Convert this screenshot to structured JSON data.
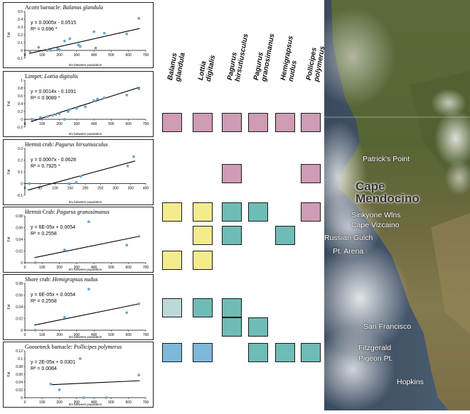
{
  "colors": {
    "pink": "#cf9bb5",
    "yellow": "#f4ec8c",
    "teal": "#6fbcb6",
    "paleblue": "#bcd9d8",
    "blue": "#7fb8d9",
    "regression_line": "#000000",
    "point": "#6fa4cf"
  },
  "panels": [
    {
      "common": "Acorn barnacle:",
      "species": "Balanus glandula",
      "eq": "y = 0.0005x - 0.0515",
      "r2": "R² = 0.696 *",
      "ylabel": "Fst",
      "xlabel": "km between population",
      "yticks": [
        "0.5",
        "0.4",
        "0.3",
        "0.2",
        "0.1",
        "0",
        "-0.1"
      ],
      "xticks": [
        "0",
        "100",
        "200",
        "300",
        "400",
        "500",
        "600",
        "700"
      ],
      "chart_data": {
        "type": "scatter",
        "xlim": [
          0,
          700
        ],
        "ylim": [
          -0.1,
          0.5
        ],
        "x": [
          30,
          80,
          130,
          150,
          190,
          200,
          230,
          260,
          310,
          320,
          400,
          410,
          460,
          590,
          660
        ],
        "y": [
          -0.01,
          0.04,
          0.0,
          0.0,
          0.02,
          0.01,
          0.12,
          0.15,
          0.07,
          0.05,
          0.24,
          0.03,
          0.22,
          0.21,
          0.41
        ],
        "fit": {
          "slope": 0.0005,
          "intercept": -0.0515
        }
      }
    },
    {
      "common": "Limpet:",
      "species": "Lottia digitalis",
      "eq": "y = 0.0014x - 0.1091",
      "r2": "R² = 0.9089 *",
      "ylabel": "Fst",
      "xlabel": "km between population",
      "yticks": [
        "1",
        "0.8",
        "0.6",
        "0.4",
        "0.2",
        "0",
        "-0.2"
      ],
      "xticks": [
        "0",
        "100",
        "200",
        "300",
        "400",
        "500",
        "600",
        "700"
      ],
      "chart_data": {
        "type": "scatter",
        "xlim": [
          0,
          700
        ],
        "ylim": [
          -0.2,
          1
        ],
        "x": [
          40,
          90,
          130,
          160,
          180,
          200,
          230,
          250,
          260,
          300,
          350,
          400,
          420,
          460,
          590,
          660
        ],
        "y": [
          0.0,
          0.05,
          0.07,
          0.1,
          0.12,
          0.14,
          0.0,
          0.2,
          0.25,
          0.28,
          0.32,
          0.48,
          0.52,
          0.55,
          0.62,
          0.78
        ],
        "fit": {
          "slope": 0.0014,
          "intercept": -0.1091
        }
      }
    },
    {
      "common": "Hermit crab:",
      "species": "Pagurus hirsutiusculus",
      "eq": "y = 0.0007x - 0.0628",
      "r2": "R² = 0.7925 *",
      "ylabel": "Fst",
      "xlabel": "km between population",
      "yticks": [
        "0.3",
        "0.2",
        "0.1",
        "0",
        "-0.1"
      ],
      "xticks": [
        "0",
        "50",
        "100",
        "150",
        "200",
        "250",
        "300",
        "350",
        "400"
      ],
      "chart_data": {
        "type": "scatter",
        "xlim": [
          0,
          400
        ],
        "ylim": [
          -0.1,
          0.3
        ],
        "x": [
          15,
          145,
          170,
          185,
          340,
          360
        ],
        "y": [
          0.0,
          0.0,
          0.01,
          0.06,
          0.15,
          0.23
        ],
        "fit": {
          "slope": 0.0007,
          "intercept": -0.0628
        }
      }
    },
    {
      "common": "Hermit Crab:",
      "species": "Pagurus granosimanus",
      "eq": "y = 6E-05x + 0.0054",
      "r2": "R² = 0.2558",
      "ylabel": "Fst",
      "xlabel": "km between population",
      "yticks": [
        "0.08",
        "0.06",
        "0.04",
        "0.02",
        "0"
      ],
      "xticks": [
        "0",
        "100",
        "200",
        "300",
        "400",
        "500",
        "600",
        "700"
      ],
      "chart_data": {
        "type": "scatter",
        "xlim": [
          0,
          700
        ],
        "ylim": [
          0,
          0.08
        ],
        "x": [
          60,
          230,
          370,
          590,
          660
        ],
        "y": [
          0.0,
          0.022,
          0.07,
          0.03,
          0.045
        ],
        "fit": {
          "slope": 6e-05,
          "intercept": 0.0054
        }
      }
    },
    {
      "common": "Shore crab:",
      "species": "Hemigrapsus nudus",
      "eq": "y = 6E-05x + 0.0054",
      "r2": "R² = 0.2558",
      "ylabel": "Fst",
      "xlabel": "km between population",
      "yticks": [
        "0.08",
        "0.06",
        "0.04",
        "0.02",
        "0"
      ],
      "xticks": [
        "0",
        "100",
        "200",
        "300",
        "400",
        "500",
        "600",
        "700"
      ],
      "chart_data": {
        "type": "scatter",
        "xlim": [
          0,
          700
        ],
        "ylim": [
          0,
          0.08
        ],
        "x": [
          60,
          230,
          370,
          590,
          660
        ],
        "y": [
          0.0,
          0.022,
          0.07,
          0.03,
          0.045
        ],
        "fit": {
          "slope": 6e-05,
          "intercept": 0.0054
        }
      }
    },
    {
      "common": "Gooseneck barnacle:",
      "species": "Pollicipes polymerus",
      "eq": "y = 2E-05x + 0.0301",
      "r2": "R² = 0.0084",
      "ylabel": "Fst",
      "xlabel": "km between population",
      "yticks": [
        "0.12",
        "0.1",
        "0.08",
        "0.06",
        "0.04",
        "0.02",
        "0"
      ],
      "xticks": [
        "0",
        "100",
        "200",
        "300",
        "400",
        "500",
        "600",
        "700"
      ],
      "chart_data": {
        "type": "scatter",
        "xlim": [
          0,
          700
        ],
        "ylim": [
          0,
          0.12
        ],
        "x": [
          150,
          200,
          320,
          340,
          470,
          660
        ],
        "y": [
          0.035,
          0.02,
          0.1,
          0.0,
          0.0,
          0.058
        ],
        "fit": {
          "slope": 2e-05,
          "intercept": 0.0301
        }
      }
    }
  ],
  "grid": {
    "columns": [
      "Balanus\nglandula",
      "Lottia\ndigitalis",
      "Pagurus\nhirsutiusculus",
      "Pagurus\ngranosimanus",
      "Hemigrapsus\nnudus",
      "Pollicipes\npolymerus"
    ],
    "rows": [
      [
        "pink",
        "pink",
        "pink",
        "pink",
        "pink",
        "pink"
      ],
      [
        null,
        null,
        null,
        null,
        null,
        null
      ],
      [
        null,
        null,
        "pink",
        null,
        null,
        "pink"
      ],
      [
        "yellow",
        "yellow",
        "teal",
        "teal",
        null,
        "pink"
      ],
      [
        null,
        "yellow",
        "teal",
        null,
        "teal",
        null
      ],
      [
        "yellow",
        "yellow",
        null,
        null,
        null,
        null
      ],
      [
        null,
        null,
        null,
        null,
        null,
        null
      ],
      [
        "paleblue",
        "teal",
        "teal",
        null,
        null,
        null
      ],
      [
        null,
        null,
        "teal",
        "teal",
        null,
        null
      ],
      [
        "blue",
        "blue",
        null,
        "teal",
        "teal",
        "teal"
      ]
    ]
  },
  "map": {
    "labels": [
      "Patrick's Point",
      "Cape\nMendocino",
      "Sinkyone Wlns",
      "Cape Vizcaino",
      "Russian Gulch",
      "Pt. Arena",
      "San Francisco",
      "Fitzgerald",
      "Pigeon Pt.",
      "Hopkins"
    ]
  }
}
